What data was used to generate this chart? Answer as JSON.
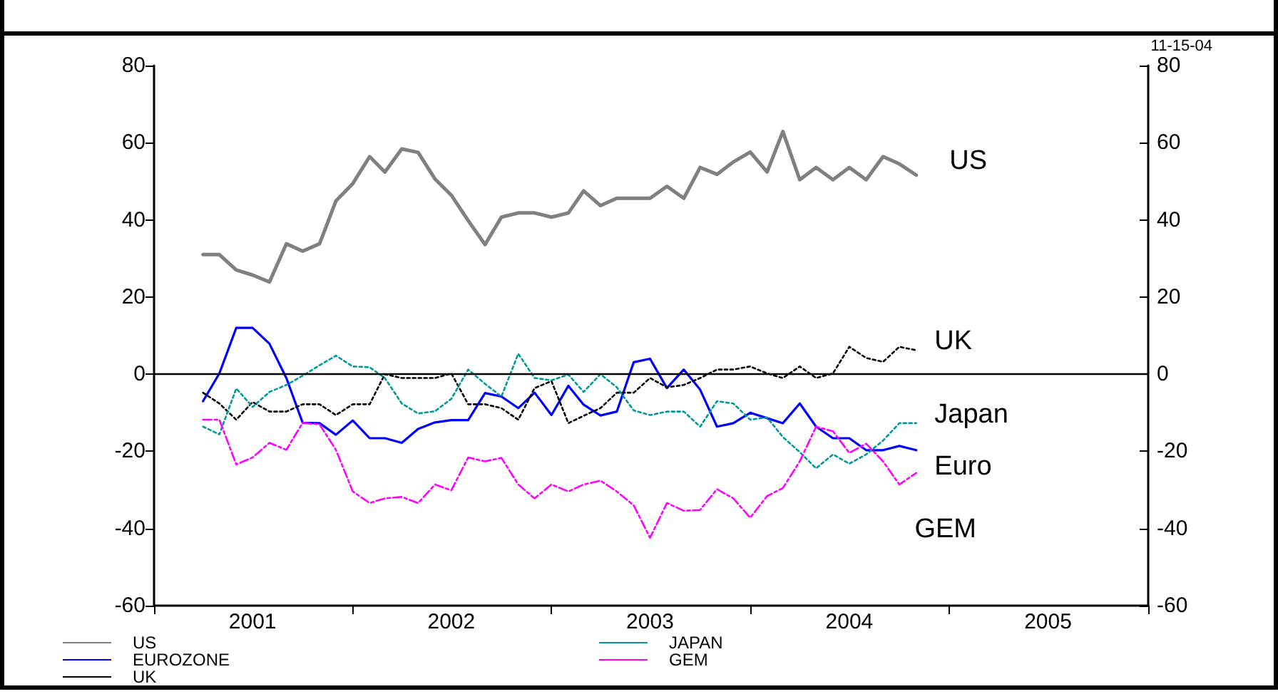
{
  "chart_data": {
    "type": "line",
    "x": [
      "2001-04",
      "2001-05",
      "2001-06",
      "2001-07",
      "2001-08",
      "2001-09",
      "2001-10",
      "2001-11",
      "2001-12",
      "2002-01",
      "2002-02",
      "2002-03",
      "2002-04",
      "2002-05",
      "2002-06",
      "2002-07",
      "2002-08",
      "2002-09",
      "2002-10",
      "2002-11",
      "2002-12",
      "2003-01",
      "2003-02",
      "2003-03",
      "2003-04",
      "2003-05",
      "2003-06",
      "2003-07",
      "2003-08",
      "2003-09",
      "2003-10",
      "2003-11",
      "2003-12",
      "2004-01",
      "2004-02",
      "2004-03",
      "2004-04",
      "2004-05",
      "2004-06",
      "2004-07",
      "2004-08",
      "2004-09",
      "2004-10",
      "2004-11"
    ],
    "series": [
      {
        "name": "US",
        "color": "#808080",
        "line_style": "solid",
        "values": [
          31,
          31,
          27,
          25.7,
          23.9,
          33.8,
          31.9,
          33.8,
          44.9,
          49.4,
          56.4,
          52.4,
          58.4,
          57.5,
          50.6,
          46.4,
          39.8,
          33.6,
          40.7,
          41.8,
          41.8,
          40.7,
          41.8,
          47.5,
          43.7,
          45.6,
          45.6,
          45.6,
          48.7,
          45.6,
          53.6,
          51.8,
          55,
          57.6,
          52.4,
          62.9,
          50.4,
          53.6,
          50.4,
          53.6,
          50.4,
          56.4,
          54.5,
          51.6
        ]
      },
      {
        "name": "EUROZONE",
        "color": "#0000ff",
        "line_style": "solid",
        "values": [
          -7,
          0.2,
          12,
          12,
          7.9,
          -1,
          -12.6,
          -12.7,
          -15.7,
          -12,
          -16.6,
          -16.6,
          -17.8,
          -14.2,
          -12.5,
          -11.9,
          -11.9,
          -4.9,
          -5.8,
          -8.8,
          -4.8,
          -10.6,
          -3,
          -7.9,
          -10.7,
          -9.7,
          3.1,
          4,
          -3.6,
          1.2,
          -4,
          -13.6,
          -12.7,
          -10,
          -11.4,
          -12.7,
          -7.6,
          -13.6,
          -16.6,
          -16.6,
          -19.7,
          -19.7,
          -18.6,
          -19.7
        ]
      },
      {
        "name": "UK",
        "color": "#000000",
        "line_style": "dotted",
        "values": [
          -4.8,
          -7.6,
          -11.8,
          -7.2,
          -9.7,
          -9.7,
          -7.8,
          -7.8,
          -10.6,
          -7.8,
          -7.8,
          0,
          -1,
          -1,
          -1,
          0.2,
          -7.8,
          -7.8,
          -8.8,
          -11.8,
          -3.6,
          -1.8,
          -12.7,
          -10.8,
          -8.8,
          -4.8,
          -4.8,
          -1,
          -3.4,
          -2.8,
          -1,
          1.2,
          1.2,
          2,
          0.2,
          -1,
          2,
          -1,
          0.2,
          7.1,
          4.2,
          3.2,
          7.1,
          6.2
        ]
      },
      {
        "name": "JAPAN",
        "color": "#009999",
        "line_style": "dotted",
        "values": [
          -13.6,
          -15.6,
          -3.7,
          -8.5,
          -4.6,
          -2.8,
          -0.4,
          2.3,
          4.8,
          2,
          1.8,
          -1,
          -7.6,
          -10.2,
          -9.6,
          -6.4,
          1.2,
          -2.5,
          -5.8,
          5.3,
          -1,
          -1.6,
          -0.1,
          -4.6,
          0,
          -3.4,
          -9.4,
          -10.6,
          -9.7,
          -9.7,
          -13.6,
          -7,
          -7.6,
          -11.8,
          -11.2,
          -16.3,
          -20.2,
          -24.4,
          -20.8,
          -23.2,
          -20.8,
          -17.2,
          -12.7,
          -12.7
        ]
      },
      {
        "name": "GEM",
        "color": "#ff00ff",
        "line_style": "dashed",
        "values": [
          -11.8,
          -11.8,
          -23.4,
          -21.6,
          -17.8,
          -19.6,
          -12.6,
          -13,
          -19.6,
          -30.4,
          -33.4,
          -32.2,
          -31.8,
          -33.4,
          -28.6,
          -30.1,
          -21.6,
          -22.6,
          -21.7,
          -28.6,
          -32.2,
          -28.6,
          -30.4,
          -28.6,
          -27.6,
          -30.4,
          -34,
          -42.4,
          -33.4,
          -35.4,
          -35.2,
          -29.8,
          -32.2,
          -37.2,
          -31.6,
          -29.5,
          -22.6,
          -13.6,
          -14.8,
          -20.4,
          -18,
          -22.6,
          -28.6,
          -25.6
        ]
      }
    ],
    "xlim": [
      "2001-01",
      "2006-01"
    ],
    "xticks": [
      {
        "value": "2001-01",
        "label": null
      },
      {
        "value": "2001-07",
        "label": "2001"
      },
      {
        "value": "2002-01",
        "label": null
      },
      {
        "value": "2002-07",
        "label": "2002"
      },
      {
        "value": "2003-01",
        "label": null
      },
      {
        "value": "2003-07",
        "label": "2003"
      },
      {
        "value": "2004-01",
        "label": null
      },
      {
        "value": "2004-07",
        "label": "2004"
      },
      {
        "value": "2005-01",
        "label": null
      },
      {
        "value": "2005-07",
        "label": "2005"
      },
      {
        "value": "2006-01",
        "label": null
      }
    ],
    "ylim": [
      -60,
      80
    ],
    "yticks": [
      -60,
      -40,
      -20,
      0,
      20,
      40,
      60,
      80
    ],
    "y2lim": [
      -60,
      80
    ],
    "y2ticks": [
      -60,
      -40,
      -20,
      0,
      20,
      40,
      60,
      80
    ],
    "ref_lines": [
      {
        "axis": "y",
        "value": 0,
        "color": "#000000"
      }
    ],
    "annotations": [
      "11-15-04",
      "US",
      "UK",
      "Japan",
      "Euro",
      "GEM"
    ],
    "legend": "bottom left",
    "grid": false,
    "marker": "none"
  }
}
